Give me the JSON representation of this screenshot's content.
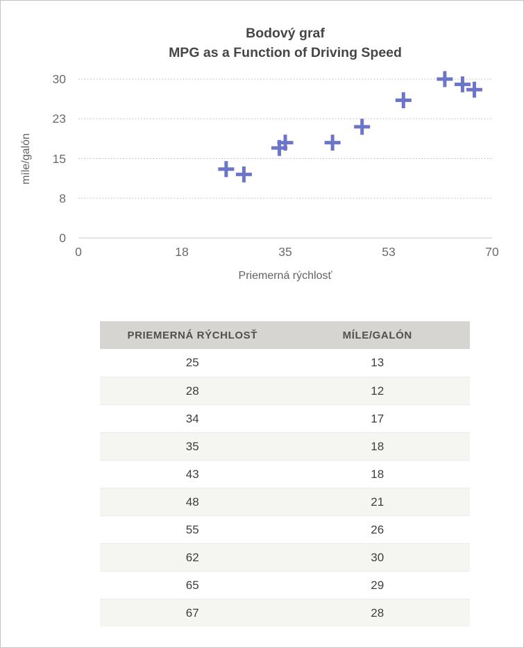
{
  "chart_data": {
    "type": "scatter",
    "title": "Bodový graf",
    "subtitle": "MPG as a Function of Driving Speed",
    "xlabel": "Priemerná rýchlosť",
    "ylabel": "míle/galón",
    "x_tick_labels": [
      "0",
      "18",
      "35",
      "53",
      "70"
    ],
    "y_tick_labels": [
      "0",
      "8",
      "15",
      "23",
      "30"
    ],
    "xlim": [
      0,
      70
    ],
    "ylim": [
      0,
      30
    ],
    "grid": "horizontal-dotted",
    "legend": "none",
    "marker": "plus",
    "marker_color": "#6c75c8",
    "gridline_color": "#b5b5b5",
    "axisline_color": "#c9c9c9",
    "points": [
      {
        "x": 25,
        "y": 13
      },
      {
        "x": 28,
        "y": 12
      },
      {
        "x": 34,
        "y": 17
      },
      {
        "x": 35,
        "y": 18
      },
      {
        "x": 43,
        "y": 18
      },
      {
        "x": 48,
        "y": 21
      },
      {
        "x": 55,
        "y": 26
      },
      {
        "x": 62,
        "y": 30
      },
      {
        "x": 65,
        "y": 29
      },
      {
        "x": 67,
        "y": 28
      }
    ]
  },
  "table": {
    "headers": [
      "PRIEMERNÁ RÝCHLOSŤ",
      "MÍLE/GALÓN"
    ],
    "rows": [
      [
        "25",
        "13"
      ],
      [
        "28",
        "12"
      ],
      [
        "34",
        "17"
      ],
      [
        "35",
        "18"
      ],
      [
        "43",
        "18"
      ],
      [
        "48",
        "21"
      ],
      [
        "55",
        "26"
      ],
      [
        "62",
        "30"
      ],
      [
        "65",
        "29"
      ],
      [
        "67",
        "28"
      ]
    ]
  }
}
